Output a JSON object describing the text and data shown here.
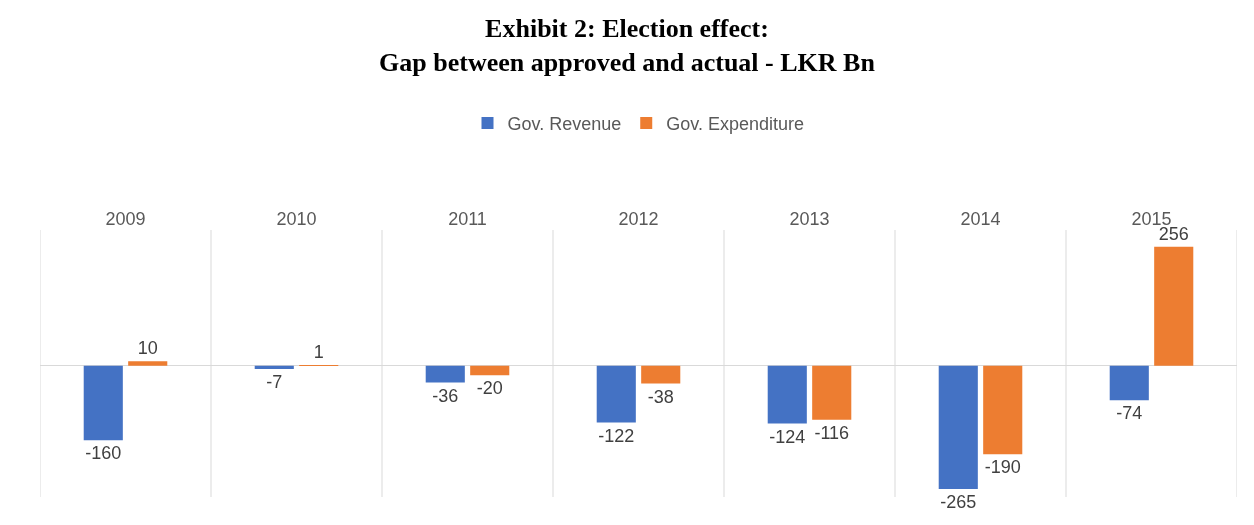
{
  "chart_data": {
    "type": "bar",
    "title": "Exhibit 2: Election effect:\nGap between approved and actual - LKR Bn",
    "categories": [
      "2009",
      "2010",
      "2011",
      "2012",
      "2013",
      "2014",
      "2015"
    ],
    "series": [
      {
        "name": "Gov. Revenue",
        "color": "#4472c4",
        "values": [
          -160,
          -7,
          -36,
          -122,
          -124,
          -265,
          -74
        ]
      },
      {
        "name": "Gov. Expenditure",
        "color": "#ed7d31",
        "values": [
          10,
          1,
          -20,
          -38,
          -116,
          -190,
          256
        ]
      }
    ],
    "ylim": [
      -282,
      292
    ],
    "data_labels": true,
    "grid": "x",
    "legend": "top",
    "tick_labels": "x"
  }
}
